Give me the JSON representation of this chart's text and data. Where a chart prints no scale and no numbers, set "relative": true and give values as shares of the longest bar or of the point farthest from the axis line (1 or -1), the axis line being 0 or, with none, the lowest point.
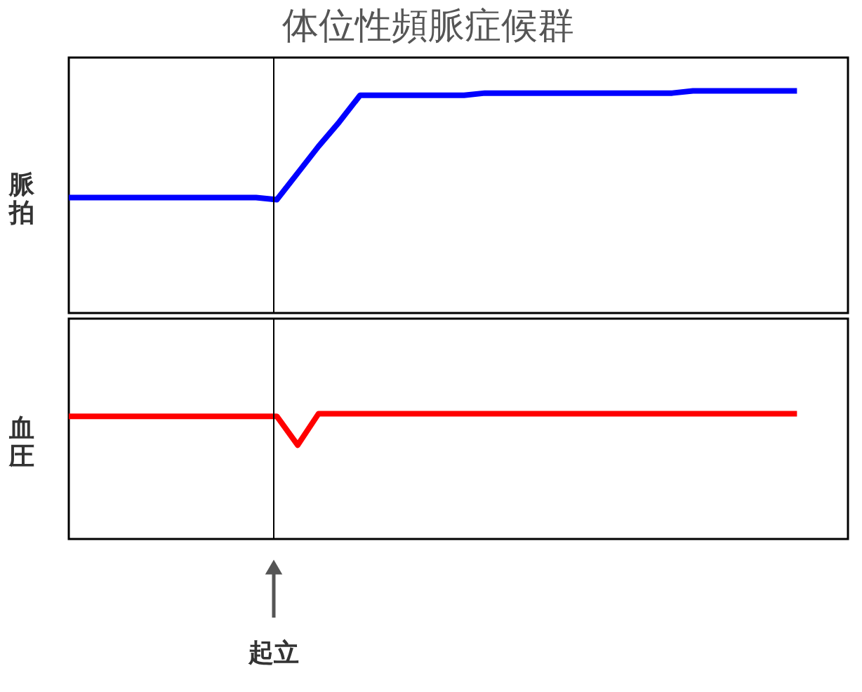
{
  "chart_data": [
    {
      "type": "line",
      "title": "体位性頻脈症候群",
      "ylabel": "脈拍",
      "relative": true,
      "categories": [
        null,
        null,
        null,
        null,
        null,
        null,
        null,
        null,
        null,
        null,
        null,
        null,
        null,
        null,
        null,
        null,
        null,
        null,
        null,
        null,
        null,
        null,
        null,
        null,
        null,
        null,
        null,
        null,
        null,
        null,
        null,
        null,
        null,
        null,
        null,
        null
      ],
      "series": [
        {
          "color": "#0000ff",
          "values": [
            0.52,
            0.52,
            0.52,
            0.52,
            0.52,
            0.52,
            0.52,
            0.52,
            0.52,
            0.52,
            0.51,
            0.63,
            0.75,
            0.86,
            0.98,
            0.98,
            0.98,
            0.98,
            0.98,
            0.98,
            0.99,
            0.99,
            0.99,
            0.99,
            0.99,
            0.99,
            0.99,
            0.99,
            0.99,
            0.99,
            1.0,
            1.0,
            1.0,
            1.0,
            1.0,
            1.0
          ]
        }
      ]
    },
    {
      "type": "line",
      "ylabel": "血圧",
      "relative": true,
      "categories": [
        null,
        null,
        null,
        null,
        null,
        null,
        null,
        null,
        null,
        null,
        null,
        null,
        null,
        null,
        null,
        null,
        null,
        null,
        null,
        null,
        null,
        null,
        null,
        null,
        null,
        null,
        null,
        null,
        null,
        null,
        null,
        null,
        null,
        null,
        null,
        null
      ],
      "series": [
        {
          "color": "#ff0000",
          "values": [
            0.98,
            0.98,
            0.98,
            0.98,
            0.98,
            0.98,
            0.98,
            0.98,
            0.98,
            0.98,
            0.98,
            0.75,
            1.0,
            1.0,
            1.0,
            1.0,
            1.0,
            1.0,
            1.0,
            1.0,
            1.0,
            1.0,
            1.0,
            1.0,
            1.0,
            1.0,
            1.0,
            1.0,
            1.0,
            1.0,
            1.0,
            1.0,
            1.0,
            1.0,
            1.0,
            1.0
          ]
        }
      ],
      "annotations": [
        "起立"
      ]
    }
  ]
}
